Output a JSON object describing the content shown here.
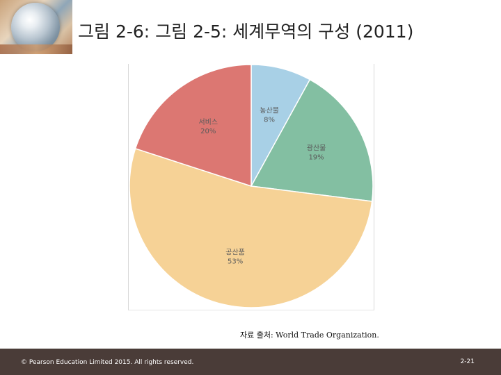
{
  "slide": {
    "title": "그림 2-6: 그림 2-5: 세계무역의 구성 (2011)",
    "source_note": "자료 출처: World Trade Organization.",
    "copyright": "© Pearson Education Limited 2015. All rights reserved.",
    "page_number": "2-21"
  },
  "chart_data": {
    "type": "pie",
    "title": "",
    "start": "top",
    "direction": "clockwise",
    "slices": [
      {
        "label": "농산물",
        "value": 8,
        "value_label": "8%",
        "color": "#a8d0e6"
      },
      {
        "label": "광산물",
        "value": 19,
        "value_label": "19%",
        "color": "#83bfa2"
      },
      {
        "label": "공산품",
        "value": 53,
        "value_label": "53%",
        "color": "#f6d296"
      },
      {
        "label": "서비스",
        "value": 20,
        "value_label": "20%",
        "color": "#dc7772"
      }
    ],
    "label_color": "#5a5a5a"
  }
}
